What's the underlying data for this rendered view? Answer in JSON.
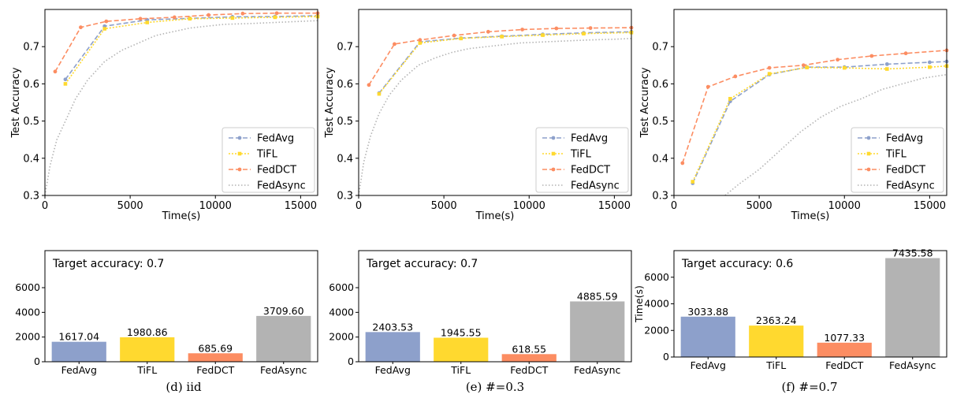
{
  "chart_data": [
    {
      "type": "line",
      "xlabel": "Time(s)",
      "ylabel": "Test Accuracy",
      "xlim": [
        0,
        16000
      ],
      "ylim": [
        0.3,
        0.8
      ],
      "xticks": [
        0,
        5000,
        10000,
        15000
      ],
      "yticks": [
        0.3,
        0.4,
        0.5,
        0.6,
        0.7
      ],
      "grid": false,
      "legend_position": "bottom-right",
      "series": [
        {
          "name": "FedAvg",
          "color": "#8da0cb",
          "dash": "6,3",
          "marker": "circle",
          "x": [
            1200,
            3500,
            6000,
            8500,
            11000,
            13500,
            16000
          ],
          "y": [
            0.612,
            0.755,
            0.772,
            0.776,
            0.78,
            0.781,
            0.783
          ]
        },
        {
          "name": "TiFL",
          "color": "#ffd92f",
          "dash": "2,2",
          "marker": "square",
          "x": [
            1200,
            3500,
            6000,
            8500,
            11000,
            13500,
            16000
          ],
          "y": [
            0.6,
            0.748,
            0.765,
            0.775,
            0.777,
            0.779,
            0.781
          ]
        },
        {
          "name": "FedDCT",
          "color": "#fc8d62",
          "dash": "6,3",
          "marker": "circle",
          "x": [
            600,
            2100,
            3600,
            5600,
            7600,
            9600,
            11600,
            13600,
            16000
          ],
          "y": [
            0.633,
            0.752,
            0.768,
            0.775,
            0.779,
            0.785,
            0.789,
            0.79,
            0.79
          ]
        },
        {
          "name": "FedAsync",
          "color": "#b3b3b3",
          "dash": "1.5,2.5",
          "marker": "none",
          "x": [
            0,
            300,
            700,
            1200,
            1800,
            2500,
            3500,
            4500,
            5500,
            6500,
            7500,
            8500,
            9500,
            10500,
            12000,
            13500,
            15000,
            16000
          ],
          "y": [
            0.3,
            0.38,
            0.45,
            0.5,
            0.56,
            0.61,
            0.66,
            0.69,
            0.71,
            0.73,
            0.74,
            0.75,
            0.755,
            0.76,
            0.762,
            0.765,
            0.768,
            0.77
          ]
        }
      ]
    },
    {
      "type": "line",
      "xlabel": "Time(s)",
      "ylabel": "Test Accuracy",
      "xlim": [
        0,
        16000
      ],
      "ylim": [
        0.3,
        0.8
      ],
      "xticks": [
        0,
        5000,
        10000,
        15000
      ],
      "yticks": [
        0.3,
        0.4,
        0.5,
        0.6,
        0.7
      ],
      "grid": false,
      "legend_position": "bottom-right",
      "series": [
        {
          "name": "FedAvg",
          "color": "#8da0cb",
          "dash": "6,3",
          "marker": "circle",
          "x": [
            1200,
            3600,
            6000,
            8400,
            10800,
            13200,
            16000
          ],
          "y": [
            0.575,
            0.713,
            0.723,
            0.728,
            0.733,
            0.737,
            0.74
          ]
        },
        {
          "name": "TiFL",
          "color": "#ffd92f",
          "dash": "2,2",
          "marker": "square",
          "x": [
            1200,
            3600,
            6000,
            8400,
            10800,
            13200,
            16000
          ],
          "y": [
            0.573,
            0.71,
            0.722,
            0.727,
            0.731,
            0.735,
            0.738
          ]
        },
        {
          "name": "FedDCT",
          "color": "#fc8d62",
          "dash": "6,3",
          "marker": "circle",
          "x": [
            600,
            2100,
            3600,
            5600,
            7600,
            9600,
            11600,
            13600,
            16000
          ],
          "y": [
            0.597,
            0.707,
            0.718,
            0.73,
            0.74,
            0.746,
            0.749,
            0.75,
            0.751
          ]
        },
        {
          "name": "FedAsync",
          "color": "#b3b3b3",
          "dash": "1.5,2.5",
          "marker": "none",
          "x": [
            0,
            300,
            700,
            1200,
            1800,
            2500,
            3500,
            4500,
            5500,
            6500,
            7500,
            8500,
            9500,
            10500,
            12000,
            13500,
            15000,
            16000
          ],
          "y": [
            0.3,
            0.39,
            0.46,
            0.52,
            0.57,
            0.61,
            0.65,
            0.67,
            0.685,
            0.695,
            0.7,
            0.705,
            0.71,
            0.712,
            0.715,
            0.718,
            0.72,
            0.722
          ]
        }
      ]
    },
    {
      "type": "line",
      "xlabel": "Time(s)",
      "ylabel": "Test Accuracy",
      "xlim": [
        0,
        16000
      ],
      "ylim": [
        0.3,
        0.8
      ],
      "xticks": [
        0,
        5000,
        10000,
        15000
      ],
      "yticks": [
        0.3,
        0.4,
        0.5,
        0.6,
        0.7
      ],
      "grid": false,
      "legend_position": "bottom-right",
      "series": [
        {
          "name": "FedAvg",
          "color": "#8da0cb",
          "dash": "6,3",
          "marker": "circle",
          "x": [
            1100,
            3300,
            5600,
            7800,
            10000,
            12500,
            15000,
            16000
          ],
          "y": [
            0.333,
            0.553,
            0.625,
            0.645,
            0.645,
            0.653,
            0.658,
            0.66
          ]
        },
        {
          "name": "TiFL",
          "color": "#ffd92f",
          "dash": "2,2",
          "marker": "square",
          "x": [
            1100,
            3300,
            5600,
            7800,
            10000,
            12500,
            15000,
            16000
          ],
          "y": [
            0.337,
            0.56,
            0.627,
            0.644,
            0.643,
            0.64,
            0.645,
            0.648
          ]
        },
        {
          "name": "FedDCT",
          "color": "#fc8d62",
          "dash": "6,3",
          "marker": "circle",
          "x": [
            500,
            2000,
            3600,
            5600,
            7600,
            9600,
            11600,
            13600,
            16000
          ],
          "y": [
            0.387,
            0.592,
            0.62,
            0.643,
            0.65,
            0.665,
            0.675,
            0.682,
            0.69
          ]
        },
        {
          "name": "FedAsync",
          "color": "#b3b3b3",
          "dash": "1.5,2.5",
          "marker": "none",
          "x": [
            3000,
            3800,
            5000,
            6200,
            7400,
            8600,
            9800,
            11000,
            12200,
            13400,
            14600,
            16000
          ],
          "y": [
            0.3,
            0.33,
            0.37,
            0.42,
            0.47,
            0.51,
            0.54,
            0.56,
            0.585,
            0.6,
            0.615,
            0.625
          ]
        }
      ]
    },
    {
      "type": "bar",
      "title": "Target accuracy: 0.7",
      "ylabel": "",
      "categories": [
        "FedAvg",
        "TiFL",
        "FedDCT",
        "FedAsync"
      ],
      "values": [
        1617.04,
        1980.86,
        685.69,
        3709.6
      ],
      "value_labels": [
        "1617.04",
        "1980.86",
        "685.69",
        "3709.60"
      ],
      "colors": [
        "#8da0cb",
        "#ffd92f",
        "#fc8d62",
        "#b3b3b3"
      ],
      "ylim": [
        0,
        9000
      ],
      "yticks": [
        0,
        2000,
        4000,
        6000
      ]
    },
    {
      "type": "bar",
      "title": "Target accuracy: 0.7",
      "ylabel": "",
      "categories": [
        "FedAvg",
        "TiFL",
        "FedDCT",
        "FedAsync"
      ],
      "values": [
        2403.53,
        1945.55,
        618.55,
        4885.59
      ],
      "value_labels": [
        "2403.53",
        "1945.55",
        "618.55",
        "4885.59"
      ],
      "colors": [
        "#8da0cb",
        "#ffd92f",
        "#fc8d62",
        "#b3b3b3"
      ],
      "ylim": [
        0,
        9000
      ],
      "yticks": [
        0,
        2000,
        4000,
        6000
      ]
    },
    {
      "type": "bar",
      "title": "Target accuracy: 0.6",
      "ylabel": "Time(s)",
      "categories": [
        "FedAvg",
        "TiFL",
        "FedDCT",
        "FedAsync"
      ],
      "values": [
        3033.88,
        2363.24,
        1077.33,
        7435.58
      ],
      "value_labels": [
        "3033.88",
        "2363.24",
        "1077.33",
        "7435.58"
      ],
      "colors": [
        "#8da0cb",
        "#ffd92f",
        "#fc8d62",
        "#b3b3b3"
      ],
      "ylim": [
        0,
        8000
      ],
      "yticks": [
        0,
        2000,
        4000,
        6000
      ]
    }
  ],
  "captions": [
    "(d) iid",
    "(e) #=0.3",
    "(f) #=0.7"
  ]
}
